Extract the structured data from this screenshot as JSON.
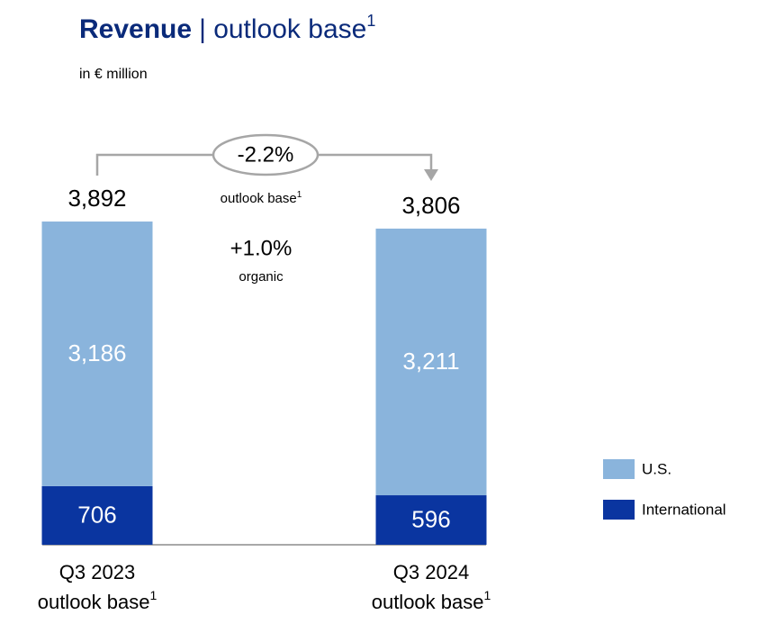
{
  "chart_data": {
    "type": "stacked_bar",
    "title": "Revenue",
    "title_rest": "| outlook base",
    "footnote_mark": "1",
    "subtitle": "in € million",
    "categories": [
      "Q3 2023",
      "Q3 2024"
    ],
    "category_notes": [
      "outlook base",
      "outlook base"
    ],
    "series": [
      {
        "name": "International",
        "color": "#0a35a0",
        "values": [
          706,
          596
        ],
        "value_labels": [
          "706",
          "596"
        ]
      },
      {
        "name": "U.S.",
        "color": "#8ab4dc",
        "values": [
          3186,
          3211
        ],
        "value_labels": [
          "3,186",
          "3,211"
        ]
      }
    ],
    "totals": [
      3892,
      3806
    ],
    "total_labels": [
      "3,892",
      "3,806"
    ],
    "annotations": [
      {
        "text": "-2.2%",
        "note": "outlook base"
      },
      {
        "text": "+1.0%",
        "note": "organic"
      }
    ],
    "ylim": [
      0,
      3900
    ]
  }
}
